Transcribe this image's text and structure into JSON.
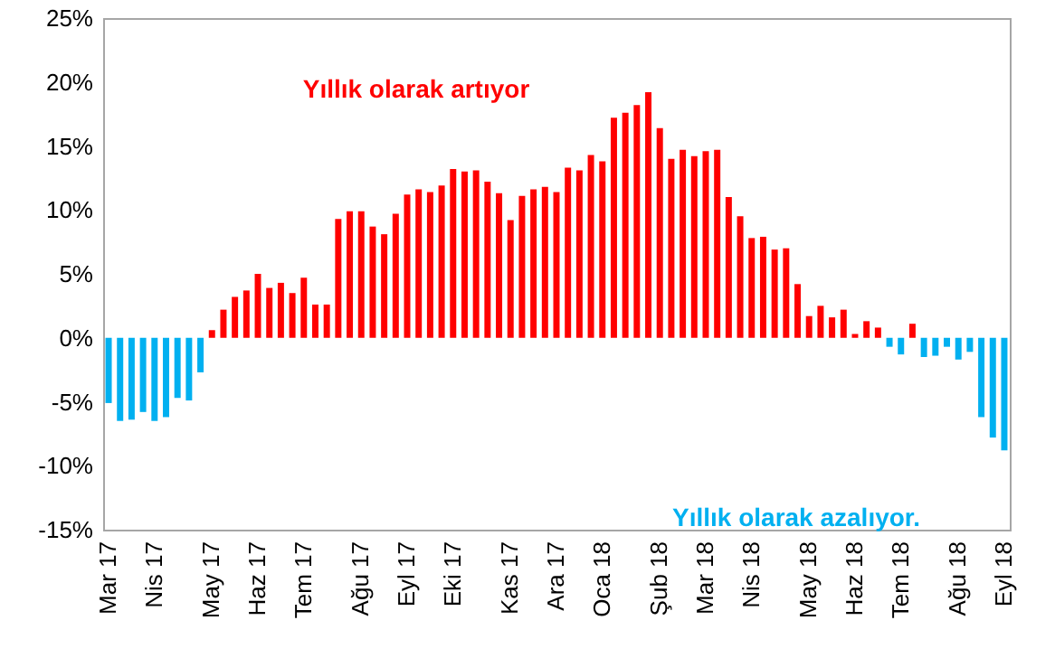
{
  "chart_data": {
    "type": "bar",
    "categories": [
      "Mar 17",
      null,
      null,
      null,
      "Nis 17",
      null,
      null,
      null,
      null,
      "May 17",
      null,
      null,
      null,
      "Haz 17",
      null,
      null,
      null,
      "Tem 17",
      null,
      null,
      null,
      null,
      "Ağu 17",
      null,
      null,
      null,
      "Eyl 17",
      null,
      null,
      null,
      "Eki 17",
      null,
      null,
      null,
      null,
      "Kas 17",
      null,
      null,
      null,
      "Ara 17",
      null,
      null,
      null,
      "Oca 18",
      null,
      null,
      null,
      null,
      "Şub 18",
      null,
      null,
      null,
      "Mar 18",
      null,
      null,
      null,
      "Nis 18",
      null,
      null,
      null,
      null,
      "May 18",
      null,
      null,
      null,
      "Haz 18",
      null,
      null,
      null,
      "Tem 18",
      null,
      null,
      null,
      null,
      "Ağu 18",
      null,
      null,
      null,
      "Eyl 18"
    ],
    "values": [
      -5.1,
      -6.5,
      -6.4,
      -5.8,
      -6.5,
      -6.2,
      -4.7,
      -4.9,
      -2.7,
      0.6,
      2.2,
      3.2,
      3.7,
      5.0,
      3.9,
      4.3,
      3.5,
      4.7,
      2.6,
      2.6,
      9.3,
      9.9,
      9.9,
      8.7,
      8.1,
      9.7,
      11.2,
      11.6,
      11.4,
      11.9,
      13.2,
      13.0,
      13.1,
      12.2,
      11.3,
      9.2,
      11.1,
      11.6,
      11.8,
      11.4,
      13.3,
      13.1,
      14.3,
      13.8,
      17.2,
      17.6,
      18.2,
      19.2,
      16.4,
      14.0,
      14.7,
      14.2,
      14.6,
      14.7,
      11.0,
      9.5,
      7.8,
      7.9,
      6.9,
      7.0,
      4.2,
      1.7,
      2.5,
      1.6,
      2.2,
      0.3,
      1.3,
      0.8,
      -0.7,
      -1.3,
      1.1,
      -1.5,
      -1.4,
      -0.7,
      -1.7,
      -1.1,
      -6.2,
      -7.8,
      -8.8
    ],
    "colors": [
      "#00b0f0",
      "#00b0f0",
      "#00b0f0",
      "#00b0f0",
      "#00b0f0",
      "#00b0f0",
      "#00b0f0",
      "#00b0f0",
      "#00b0f0",
      "#ff0000",
      "#ff0000",
      "#ff0000",
      "#ff0000",
      "#ff0000",
      "#ff0000",
      "#ff0000",
      "#ff0000",
      "#ff0000",
      "#ff0000",
      "#ff0000",
      "#ff0000",
      "#ff0000",
      "#ff0000",
      "#ff0000",
      "#ff0000",
      "#ff0000",
      "#ff0000",
      "#ff0000",
      "#ff0000",
      "#ff0000",
      "#ff0000",
      "#ff0000",
      "#ff0000",
      "#ff0000",
      "#ff0000",
      "#ff0000",
      "#ff0000",
      "#ff0000",
      "#ff0000",
      "#ff0000",
      "#ff0000",
      "#ff0000",
      "#ff0000",
      "#ff0000",
      "#ff0000",
      "#ff0000",
      "#ff0000",
      "#ff0000",
      "#ff0000",
      "#ff0000",
      "#ff0000",
      "#ff0000",
      "#ff0000",
      "#ff0000",
      "#ff0000",
      "#ff0000",
      "#ff0000",
      "#ff0000",
      "#ff0000",
      "#ff0000",
      "#ff0000",
      "#ff0000",
      "#ff0000",
      "#ff0000",
      "#ff0000",
      "#ff0000",
      "#ff0000",
      "#ff0000",
      "#00b0f0",
      "#00b0f0",
      "#ff0000",
      "#00b0f0",
      "#00b0f0",
      "#00b0f0",
      "#00b0f0",
      "#00b0f0",
      "#00b0f0",
      "#00b0f0",
      "#00b0f0"
    ],
    "ylim": [
      -15,
      25
    ],
    "yticks": [
      {
        "value": -15,
        "label": "-15%"
      },
      {
        "value": -10,
        "label": "-10%"
      },
      {
        "value": -5,
        "label": "-5%"
      },
      {
        "value": 0,
        "label": "0%"
      },
      {
        "value": 5,
        "label": "5%"
      },
      {
        "value": 10,
        "label": "10%"
      },
      {
        "value": 15,
        "label": "15%"
      },
      {
        "value": 20,
        "label": "20%"
      },
      {
        "value": 25,
        "label": "25%"
      }
    ],
    "grid": false,
    "annotations": [
      "Yıllık olarak artıyor",
      "Yıllık olarak azalıyor."
    ]
  }
}
